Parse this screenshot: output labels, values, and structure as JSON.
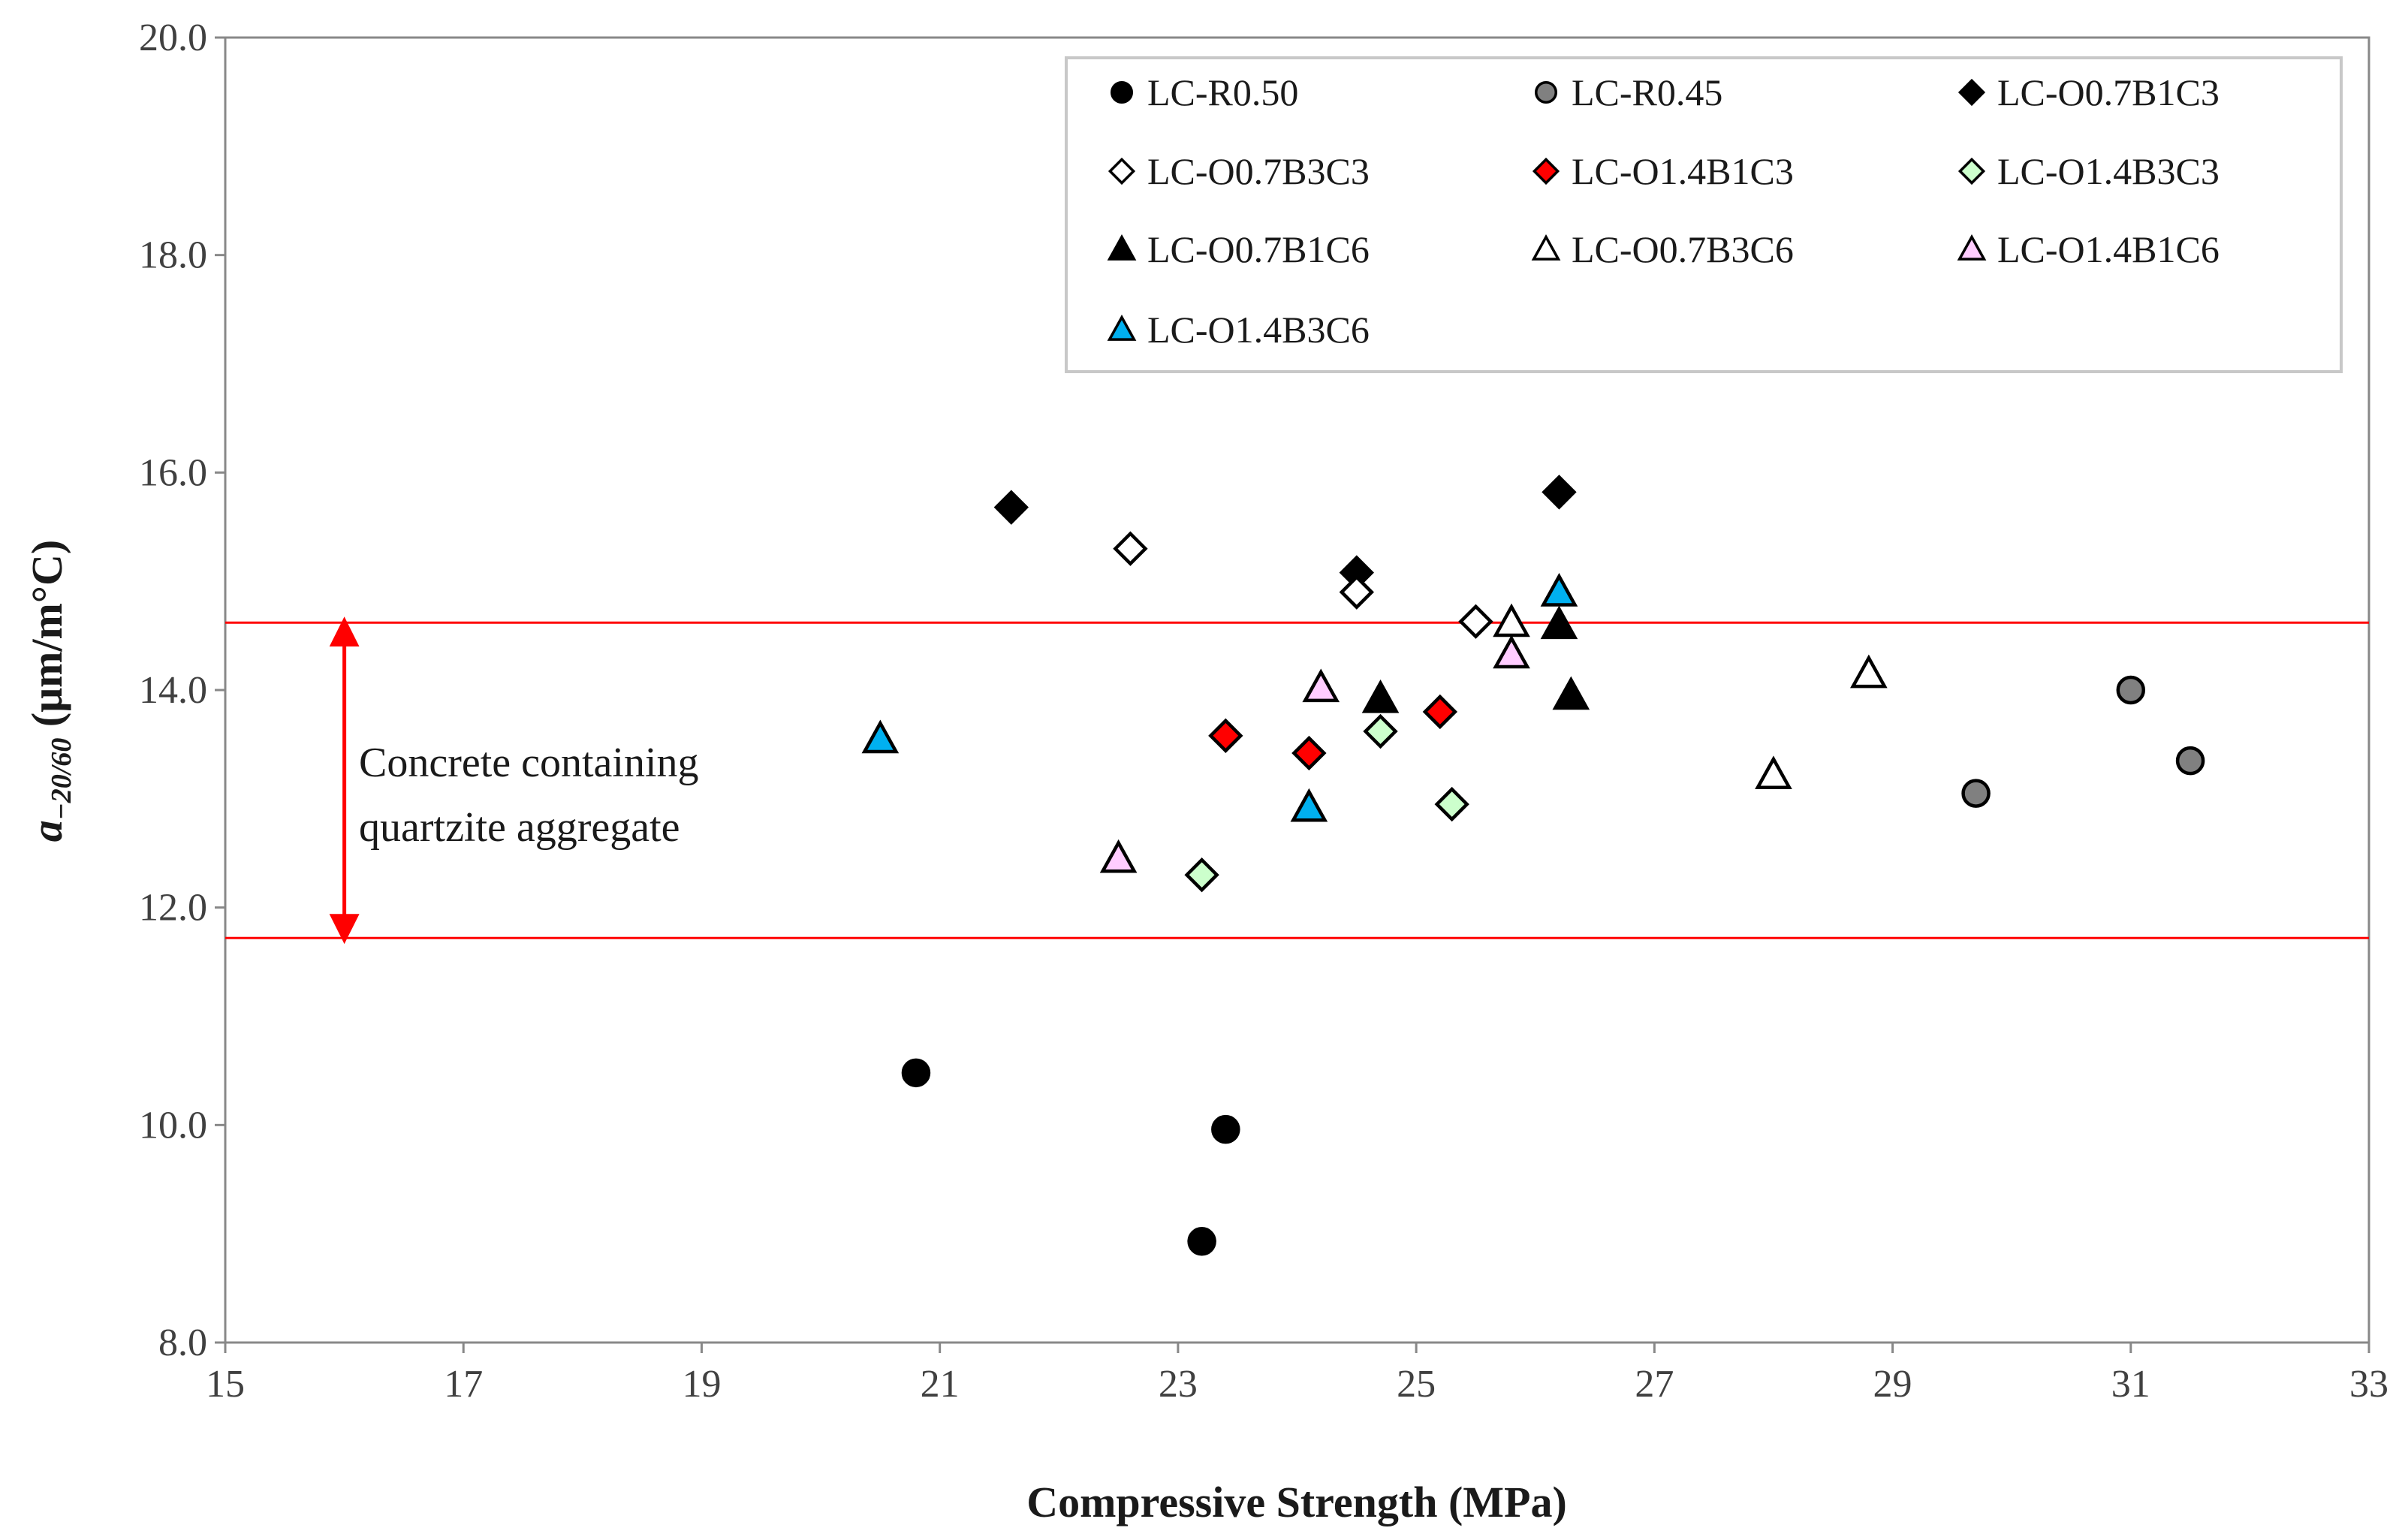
{
  "chart_data": {
    "type": "scatter",
    "title": "",
    "xlabel": "Compressive Strength (MPa)",
    "ylabel": {
      "symbol": "a",
      "subscript": "−20/60",
      "units": " (μm/m°C)"
    },
    "xlim": [
      15,
      33
    ],
    "ylim": [
      8.0,
      20.0
    ],
    "xticks": [
      "15",
      "17",
      "19",
      "21",
      "23",
      "25",
      "27",
      "29",
      "31",
      "33"
    ],
    "yticks": [
      "8.0",
      "10.0",
      "12.0",
      "14.0",
      "16.0",
      "18.0",
      "20.0"
    ],
    "grid": false,
    "legend_position": "top-right",
    "reference_lines": [
      {
        "y": 14.62,
        "color": "#ff0000"
      },
      {
        "y": 11.72,
        "color": "#ff0000"
      }
    ],
    "annotation": {
      "lines": [
        "Concrete containing",
        "quartzite aggregate"
      ],
      "arrow_x": 16.0,
      "arrow_from": 11.72,
      "arrow_to": 14.62,
      "color": "#ff0000"
    },
    "series": [
      {
        "name": "LC-R0.50",
        "marker": "circle",
        "fill": "#000000",
        "points": [
          [
            20.8,
            10.48
          ],
          [
            23.4,
            9.96
          ],
          [
            23.2,
            8.93
          ]
        ]
      },
      {
        "name": "LC-R0.45",
        "marker": "circle",
        "fill": "#808080",
        "points": [
          [
            29.7,
            13.05
          ],
          [
            31.0,
            14.0
          ],
          [
            31.5,
            13.35
          ]
        ]
      },
      {
        "name": "LC-O0.7B1C3",
        "marker": "diamond",
        "fill": "#000000",
        "points": [
          [
            21.6,
            15.68
          ],
          [
            24.5,
            15.08
          ],
          [
            26.2,
            15.82
          ]
        ]
      },
      {
        "name": "LC-O0.7B3C3",
        "marker": "diamond",
        "fill": "#ffffff",
        "points": [
          [
            22.6,
            15.3
          ],
          [
            24.5,
            14.9
          ],
          [
            25.5,
            14.63
          ]
        ]
      },
      {
        "name": "LC-O1.4B1C3",
        "marker": "diamond",
        "fill": "#ff0000",
        "points": [
          [
            23.4,
            13.58
          ],
          [
            24.1,
            13.42
          ],
          [
            25.2,
            13.8
          ]
        ]
      },
      {
        "name": "LC-O1.4B3C3",
        "marker": "diamond",
        "fill": "#ccffcc",
        "points": [
          [
            23.2,
            12.3
          ],
          [
            24.7,
            13.62
          ],
          [
            25.3,
            12.95
          ]
        ]
      },
      {
        "name": "LC-O0.7B1C6",
        "marker": "triangle",
        "fill": "#000000",
        "points": [
          [
            24.7,
            13.92
          ],
          [
            26.2,
            14.6
          ],
          [
            26.3,
            13.95
          ]
        ]
      },
      {
        "name": "LC-O0.7B3C6",
        "marker": "triangle",
        "fill": "#ffffff",
        "points": [
          [
            25.8,
            14.62
          ],
          [
            28.0,
            13.22
          ],
          [
            28.8,
            14.15
          ]
        ]
      },
      {
        "name": "LC-O1.4B1C6",
        "marker": "triangle",
        "fill": "#ffccff",
        "points": [
          [
            22.5,
            12.45
          ],
          [
            24.2,
            14.02
          ],
          [
            25.8,
            14.33
          ]
        ]
      },
      {
        "name": "LC-O1.4B3C6",
        "marker": "triangle",
        "fill": "#00b0f0",
        "points": [
          [
            20.5,
            13.55
          ],
          [
            24.1,
            12.92
          ],
          [
            26.2,
            14.9
          ]
        ]
      }
    ]
  }
}
